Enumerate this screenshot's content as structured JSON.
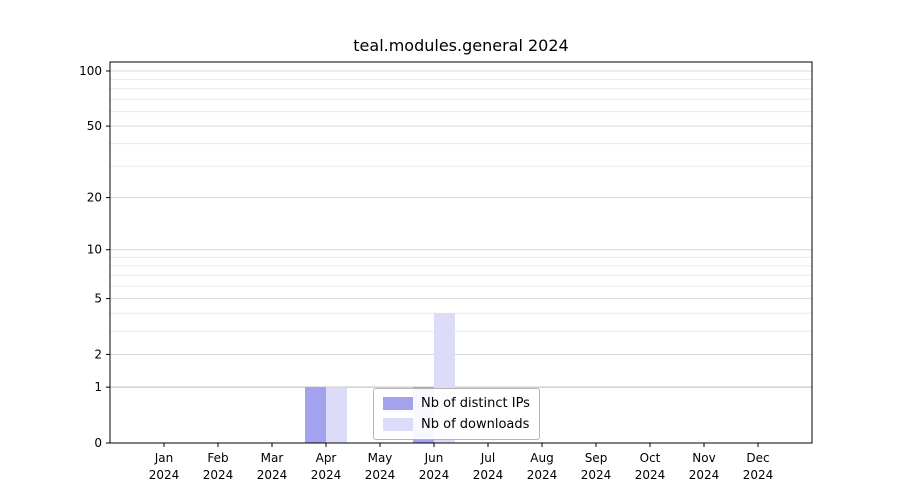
{
  "title": "teal.modules.general 2024",
  "chart_data": {
    "type": "bar",
    "title": "teal.modules.general 2024",
    "categories": [
      "Jan 2024",
      "Feb 2024",
      "Mar 2024",
      "Apr 2024",
      "May 2024",
      "Jun 2024",
      "Jul 2024",
      "Aug 2024",
      "Sep 2024",
      "Oct 2024",
      "Nov 2024",
      "Dec 2024"
    ],
    "series": [
      {
        "name": "Nb of distinct IPs",
        "color": "#a2a2ee",
        "values": [
          0,
          0,
          0,
          1,
          0,
          1,
          0,
          0,
          0,
          0,
          0,
          0
        ]
      },
      {
        "name": "Nb of downloads",
        "color": "#dcdcf8",
        "values": [
          0,
          0,
          0,
          1,
          0,
          4,
          0,
          0,
          0,
          0,
          0,
          0
        ]
      }
    ],
    "xlabel": "",
    "ylabel": "",
    "y_scale": "log1p",
    "y_ticks": [
      0,
      1,
      2,
      5,
      10,
      20,
      50,
      100
    ],
    "ylim": [
      0,
      110
    ],
    "grid": true,
    "legend_position": "lower center inside"
  },
  "colors": {
    "spine": "#000000",
    "major_grid": "#d9d9d9",
    "baseline_one_grid": "#b9b9b9",
    "minor_grid": "#e9e9e9",
    "background": "#ffffff"
  }
}
